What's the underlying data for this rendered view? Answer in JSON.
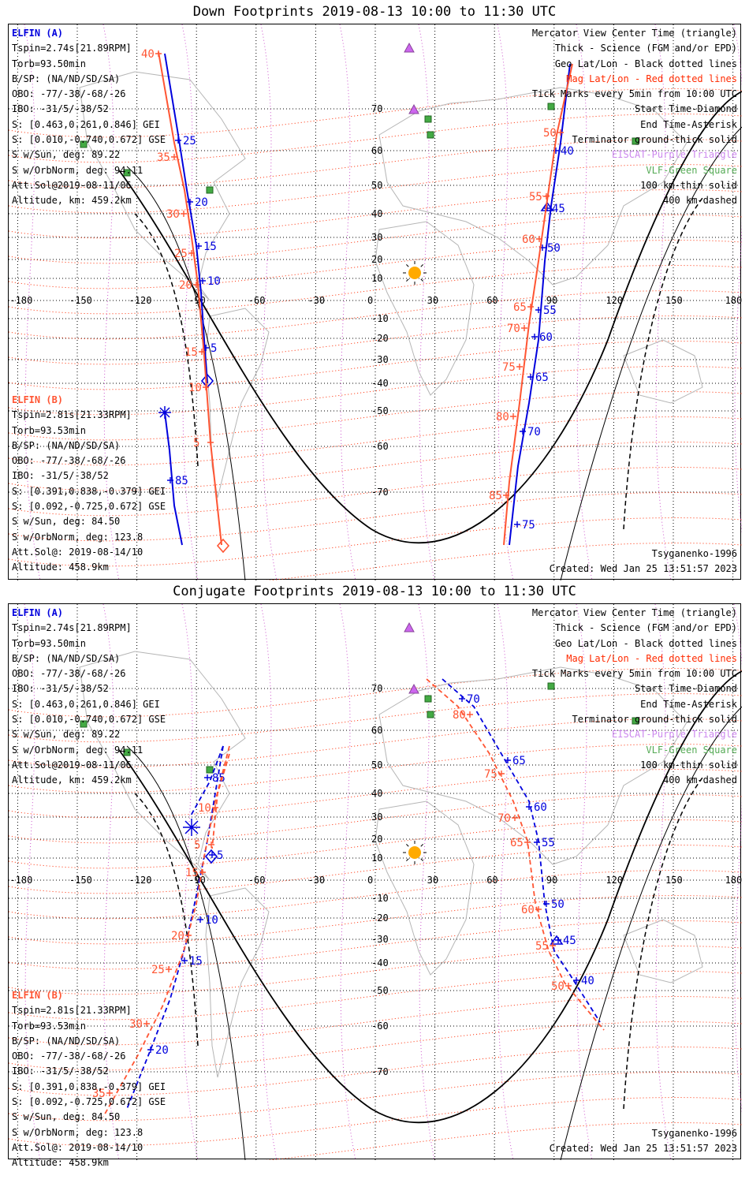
{
  "panels": [
    {
      "title": "Down Footprints 2019-08-13 10:00 to 11:30 UTC",
      "elfin_a": {
        "name": "ELFIN (A)",
        "lines": [
          "Tspin=2.74s[21.89RPM]",
          "Torb=93.50min",
          "B/SP: (NA/ND/SD/SA)",
          "OBO: -77/-38/-68/-26",
          "IBO: -31/5/-38/52",
          "S: [0.463,0.261,0.846] GEI",
          "S: [0.010,-0.740,0.672] GSE",
          "S w/Sun, deg: 89.22",
          "S w/OrbNorm, deg: 94.11",
          "Att.Sol@2019-08-11/06",
          "Altitude, km: 459.2km"
        ]
      },
      "elfin_b": {
        "name": "ELFIN (B)",
        "lines": [
          "Tspin=2.81s[21.33RPM]",
          "Torb=93.53min",
          "B/SP: (NA/ND/SD/SA)",
          "OBO: -77/-38/-68/-26",
          "IBO: -31/5/-38/52",
          "S: [0.391,0.838,-0.379] GEI",
          "S: [0.092,-0.725,0.672] GSE",
          "S w/Sun, deg: 84.50",
          "S w/OrbNorm, deg: 123.8",
          "Att.Sol@: 2019-08-14/10",
          "Altitude: 458.9km"
        ]
      },
      "legend": [
        {
          "text": "Mercator View Center Time (triangle)",
          "color": "#000000"
        },
        {
          "text": "Thick - Science (FGM and/or EPD)",
          "color": "#000000"
        },
        {
          "text": "Geo Lat/Lon - Black dotted lines",
          "color": "#000000"
        },
        {
          "text": "Mag Lat/Lon - Red dotted lines",
          "color": "#ff2a00"
        },
        {
          "text": "Tick Marks every 5min from 10:00 UTC",
          "color": "#000000"
        },
        {
          "text": "Start Time-Diamond",
          "color": "#000000"
        },
        {
          "text": "End Time-Asterisk",
          "color": "#000000"
        },
        {
          "text": "Terminator ground-thick solid",
          "color": "#000000"
        },
        {
          "text": "EISCAT-Purple Triangle",
          "color": "#cc88ee"
        },
        {
          "text": "VLF-Green Square",
          "color": "#55aa55"
        },
        {
          "text": "100 km-thin solid",
          "color": "#000000"
        },
        {
          "text": "400 km-dashed",
          "color": "#000000"
        }
      ],
      "model": "Tsyganenko-1996",
      "created": "Created: Wed Jan 25 13:51:57 2023"
    },
    {
      "title": "Conjugate Footprints 2019-08-13 10:00 to 11:30 UTC",
      "elfin_a": {
        "name": "ELFIN (A)",
        "lines": [
          "Tspin=2.74s[21.89RPM]",
          "Torb=93.50min",
          "B/SP: (NA/ND/SD/SA)",
          "OBO: -77/-38/-68/-26",
          "IBO: -31/5/-38/52",
          "S: [0.463,0.261,0.846] GEI",
          "S: [0.010,-0.740,0.672] GSE",
          "S w/Sun, deg: 89.22",
          "S w/OrbNorm, deg: 94.11",
          "Att.Sol@2019-08-11/06",
          "Altitude, km: 459.2km"
        ]
      },
      "elfin_b": {
        "name": "ELFIN (B)",
        "lines": [
          "Tspin=2.81s[21.33RPM]",
          "Torb=93.53min",
          "B/SP: (NA/ND/SD/SA)",
          "OBO: -77/-38/-68/-26",
          "IBO: -31/5/-38/52",
          "S: [0.391,0.838,-0.379] GEI",
          "S: [0.092,-0.725,0.672] GSE",
          "S w/Sun, deg: 84.50",
          "S w/OrbNorm, deg: 123.8",
          "Att.Sol@: 2019-08-14/10",
          "Altitude: 458.9km"
        ]
      },
      "legend": [
        {
          "text": "Mercator View Center Time (triangle)",
          "color": "#000000"
        },
        {
          "text": "Thick - Science (FGM and/or EPD)",
          "color": "#000000"
        },
        {
          "text": "Geo Lat/Lon - Black dotted lines",
          "color": "#000000"
        },
        {
          "text": "Mag Lat/Lon - Red dotted lines",
          "color": "#ff2a00"
        },
        {
          "text": "Tick Marks every 5min from 10:00 UTC",
          "color": "#000000"
        },
        {
          "text": "Start Time-Diamond",
          "color": "#000000"
        },
        {
          "text": "End Time-Asterisk",
          "color": "#000000"
        },
        {
          "text": "Terminator ground-thick solid",
          "color": "#000000"
        },
        {
          "text": "EISCAT-Purple Triangle",
          "color": "#cc88ee"
        },
        {
          "text": "VLF-Green Square",
          "color": "#55aa55"
        },
        {
          "text": "100 km-thin solid",
          "color": "#000000"
        },
        {
          "text": "400 km-dashed",
          "color": "#000000"
        }
      ],
      "model": "Tsyganenko-1996",
      "created": "Created: Wed Jan 25 13:51:57 2023"
    }
  ],
  "grid": {
    "lon_ticks": [
      "-180",
      "-150",
      "-120",
      "-90",
      "-60",
      "-30",
      "0",
      "30",
      "60",
      "90",
      "120",
      "150",
      "180"
    ],
    "lat_ticks": [
      "70",
      "60",
      "50",
      "40",
      "30",
      "20",
      "10",
      "-10",
      "-20",
      "-30",
      "-40",
      "-50",
      "-60",
      "-70"
    ]
  },
  "colors": {
    "elfin_a": "#0000dd",
    "elfin_b": "#ff5533",
    "mag_grid": "#ff2a00",
    "geo_grid": "#000000",
    "eiscat": "#cc66ee",
    "vlf": "#44aa44",
    "sun": "#ffaa00"
  },
  "down_tracks": {
    "a_west": {
      "ticks": [
        "25",
        "20",
        "15",
        "10",
        "5"
      ]
    },
    "b_west": {
      "ticks": [
        "40",
        "35",
        "30",
        "25",
        "20",
        "15",
        "10",
        "5"
      ]
    },
    "a_east": {
      "ticks": [
        "40",
        "45",
        "50",
        "55",
        "60",
        "65",
        "70",
        "75"
      ]
    },
    "b_east": {
      "ticks": [
        "50",
        "55",
        "60",
        "65",
        "70",
        "75",
        "80",
        "85"
      ]
    },
    "b_far": {
      "ticks": [
        "85"
      ]
    }
  },
  "conj_tracks": {
    "a_west": {
      "ticks": [
        "5",
        "10",
        "15",
        "20"
      ]
    },
    "b_west": {
      "ticks": [
        "15",
        "20",
        "25",
        "30",
        "35"
      ]
    },
    "a_top": {
      "ticks": [
        "85"
      ]
    },
    "b_top": {
      "ticks": [
        "10",
        "5"
      ]
    },
    "a_east": {
      "ticks": [
        "70",
        "65",
        "60",
        "55",
        "50",
        "45",
        "40"
      ]
    },
    "b_east": {
      "ticks": [
        "80",
        "75",
        "70",
        "65",
        "60",
        "55",
        "50"
      ]
    }
  }
}
